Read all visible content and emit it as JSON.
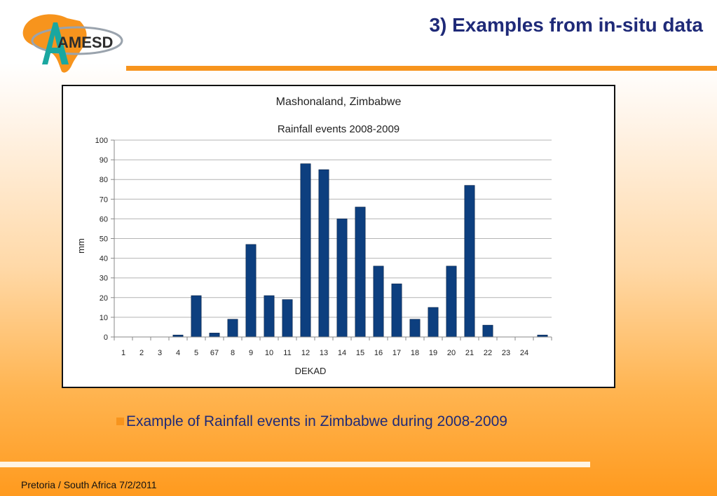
{
  "header": {
    "title": "3) Examples from in-situ data",
    "logo_text": "AMESD"
  },
  "caption": {
    "text": "Example of Rainfall events in Zimbabwe during 2008-2009"
  },
  "footer": {
    "text": "Pretoria / South Africa 7/2/2011"
  },
  "colors": {
    "accent": "#f7941d",
    "title": "#1f2a78",
    "bar": "#0d3f7f"
  },
  "chart_data": {
    "type": "bar",
    "title": "Mashonaland, Zimbabwe",
    "subtitle": "Rainfall events  2008-2009",
    "xlabel": "DEKAD",
    "ylabel": "mm",
    "ylim": [
      0,
      100
    ],
    "yticks": [
      0,
      10,
      20,
      30,
      40,
      50,
      60,
      70,
      80,
      90,
      100
    ],
    "grid": true,
    "legend": "none",
    "categories": [
      "1",
      "2",
      "3",
      "4",
      "5",
      "67",
      "8",
      "9",
      "10",
      "11",
      "12",
      "13",
      "14",
      "15",
      "16",
      "17",
      "18",
      "19",
      "20",
      "21",
      "22",
      "23",
      "24",
      ""
    ],
    "values": [
      0,
      0,
      0,
      1,
      21,
      2,
      9,
      47,
      21,
      19,
      88,
      85,
      60,
      66,
      36,
      27,
      9,
      15,
      36,
      77,
      6,
      0,
      0,
      1
    ]
  }
}
